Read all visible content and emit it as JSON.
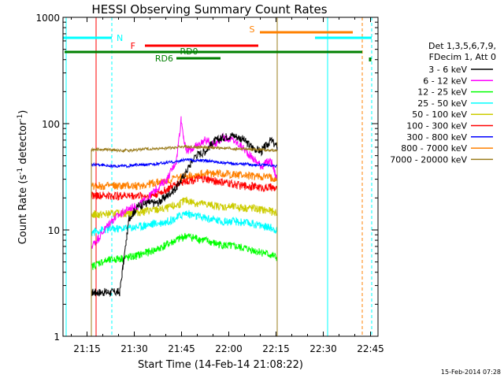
{
  "chart_data": {
    "type": "line",
    "title": "HESSI Observing Summary Count Rates",
    "xlabel": "Start Time (14-Feb-14 21:08:22)",
    "ylabel_main": "Count Rate (s",
    "ylabel_sup1": "-1",
    "ylabel_mid": " detector",
    "ylabel_sup2": "-1",
    "ylabel_end": ")",
    "yscale": "log",
    "ylim": [
      1,
      1000
    ],
    "xlim_minutes": [
      0,
      100
    ],
    "x_tick_labels": [
      "21:15",
      "21:30",
      "21:45",
      "22:00",
      "22:15",
      "22:30",
      "22:45"
    ],
    "x_tick_minutes": [
      7.63,
      22.63,
      37.63,
      52.63,
      67.63,
      82.63,
      97.63
    ],
    "y_tick_labels": [
      "1",
      "10",
      "100",
      "1000"
    ],
    "y_tick_values": [
      1,
      10,
      100,
      1000
    ],
    "legend_header": [
      "Det 1,3,5,6,7,9,",
      "FDecim 1, Att 0"
    ],
    "series": [
      {
        "name": "3 - 6 keV",
        "color": "#000000",
        "x": [
          9,
          10.5,
          12,
          15,
          18,
          21,
          24,
          27,
          30,
          33,
          36,
          39,
          42,
          45,
          48,
          51,
          54,
          57,
          60,
          63,
          66,
          68
        ],
        "y": [
          2.6,
          2.6,
          2.6,
          2.6,
          2.6,
          13,
          17,
          18,
          18,
          21,
          25,
          35,
          50,
          55,
          68,
          75,
          78,
          72,
          60,
          55,
          70,
          60
        ]
      },
      {
        "name": "6 - 12 keV",
        "color": "#ff00ff",
        "x": [
          9,
          12,
          15,
          18,
          21,
          24,
          27,
          30,
          33,
          36,
          37.5,
          39,
          42,
          45,
          48,
          51,
          54,
          57,
          60,
          63,
          66,
          68
        ],
        "y": [
          7,
          9,
          12,
          14,
          16,
          17,
          20,
          25,
          30,
          45,
          110,
          55,
          60,
          70,
          65,
          75,
          70,
          60,
          48,
          40,
          45,
          30
        ]
      },
      {
        "name": "12 - 25 keV",
        "color": "#00ff00",
        "x": [
          9,
          12,
          15,
          18,
          21,
          24,
          27,
          30,
          33,
          36,
          39,
          42,
          45,
          48,
          51,
          54,
          57,
          60,
          63,
          66,
          68
        ],
        "y": [
          4.5,
          5,
          5.2,
          5.4,
          5.5,
          5.8,
          6.2,
          6.6,
          7.3,
          8,
          8.8,
          8.4,
          8,
          7.5,
          7.2,
          7,
          6.8,
          6.5,
          6.2,
          5.8,
          5.5
        ]
      },
      {
        "name": "25 - 50 keV",
        "color": "#00ffff",
        "x": [
          9,
          12,
          15,
          18,
          21,
          24,
          27,
          30,
          33,
          36,
          39,
          42,
          45,
          48,
          51,
          54,
          57,
          60,
          63,
          66,
          68
        ],
        "y": [
          9.5,
          10,
          10.2,
          10.3,
          10.5,
          10.8,
          11.2,
          11.6,
          12,
          13,
          14.5,
          13.5,
          13,
          12.5,
          12,
          12,
          11.8,
          11.5,
          11,
          10.5,
          10
        ]
      },
      {
        "name": "50 - 100 keV",
        "color": "#cccc00",
        "x": [
          9,
          12,
          15,
          18,
          21,
          24,
          27,
          30,
          33,
          36,
          39,
          42,
          45,
          48,
          51,
          54,
          57,
          60,
          63,
          66,
          68
        ],
        "y": [
          14,
          14,
          14.2,
          14.3,
          14.5,
          14.8,
          15.2,
          15.5,
          16,
          17,
          19,
          18,
          17.5,
          17,
          16.5,
          16.5,
          16.2,
          16,
          15.5,
          15,
          14.5
        ]
      },
      {
        "name": "100 - 300 keV",
        "color": "#ff0000",
        "x": [
          9,
          12,
          15,
          18,
          21,
          24,
          27,
          30,
          33,
          36,
          39,
          42,
          45,
          48,
          51,
          54,
          57,
          60,
          63,
          66,
          68
        ],
        "y": [
          21,
          21,
          21,
          21,
          21,
          21,
          21,
          22,
          24,
          27,
          29,
          30,
          30,
          29,
          28,
          27,
          26,
          26,
          25,
          25,
          24
        ]
      },
      {
        "name": "300 - 800 keV",
        "color": "#0000ff",
        "x": [
          9,
          12,
          15,
          18,
          21,
          24,
          27,
          30,
          33,
          36,
          39,
          42,
          45,
          48,
          51,
          54,
          57,
          60,
          63,
          66,
          68
        ],
        "y": [
          41,
          41,
          40,
          40,
          40,
          41,
          41,
          42,
          43,
          44,
          46,
          45,
          45,
          44,
          43,
          42,
          42,
          41,
          41,
          40,
          40
        ]
      },
      {
        "name": "800 - 7000 keV",
        "color": "#ff8000",
        "x": [
          9,
          12,
          15,
          18,
          21,
          24,
          27,
          30,
          33,
          36,
          39,
          42,
          45,
          48,
          51,
          54,
          57,
          60,
          63,
          66,
          68
        ],
        "y": [
          26,
          26,
          26,
          26,
          26,
          26,
          27,
          28,
          29,
          31,
          32,
          33,
          34,
          34,
          34,
          33,
          33,
          32,
          32,
          31,
          31
        ]
      },
      {
        "name": "7000 - 20000 keV",
        "color": "#9b7d1e",
        "x": [
          9,
          12,
          15,
          18,
          21,
          24,
          27,
          30,
          33,
          36,
          39,
          42,
          45,
          48,
          51,
          54,
          57,
          60,
          63,
          66,
          68
        ],
        "y": [
          57,
          57,
          57,
          56,
          56,
          57,
          58,
          58,
          59,
          60,
          61,
          60,
          60,
          59,
          59,
          58,
          58,
          57,
          57,
          56,
          56
        ]
      }
    ],
    "flag_labels": {
      "N": "N",
      "F": "F",
      "RD0": "RD0",
      "RD6": "RD6",
      "S": "S"
    },
    "flag_colors": {
      "N": "#00ffff",
      "F": "#ff0000",
      "RD0": "#008000",
      "RD6": "#008000",
      "S": "#ff8000"
    },
    "timestamp": "15-Feb-2014 07:28"
  }
}
